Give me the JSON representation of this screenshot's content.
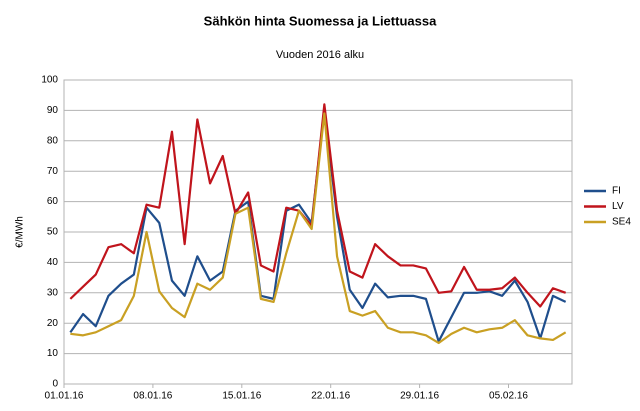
{
  "chart_data": {
    "type": "line",
    "title": "Sähkön hinta Suomessa ja Liettuassa",
    "subtitle": "Vuoden 2016 alku",
    "y_label": "€/MWh",
    "categories": [
      "01.01.16",
      null,
      null,
      null,
      null,
      null,
      null,
      "08.01.16",
      null,
      null,
      null,
      null,
      null,
      null,
      "15.01.16",
      null,
      null,
      null,
      null,
      null,
      null,
      "22.01.16",
      null,
      null,
      null,
      null,
      null,
      null,
      "29.01.16",
      null,
      null,
      null,
      null,
      null,
      null,
      "05.02.16",
      null,
      null,
      null,
      null
    ],
    "series": [
      {
        "name": "FI",
        "color": "#1f4e8c",
        "values": [
          17,
          23,
          19,
          29,
          33,
          36,
          58,
          53,
          34,
          29,
          42,
          34,
          37,
          57,
          60,
          29,
          28,
          57,
          59,
          53,
          90,
          55,
          31,
          25,
          33,
          28.5,
          29,
          29,
          28,
          14,
          22,
          30,
          30,
          30.5,
          29,
          34,
          27,
          15,
          29,
          27
        ]
      },
      {
        "name": "LV",
        "color": "#c0141c",
        "values": [
          28,
          32,
          36,
          45,
          46,
          43,
          59,
          58,
          83,
          46,
          87,
          66,
          75,
          56,
          63,
          39,
          37,
          58,
          57,
          52,
          92,
          57,
          37,
          35,
          46,
          42,
          39,
          39,
          38,
          30,
          30.5,
          38.5,
          31,
          31,
          31.5,
          35,
          30,
          25.5,
          31.5,
          30
        ]
      },
      {
        "name": "SE4",
        "color": "#c9a023",
        "values": [
          16.5,
          16,
          17,
          19,
          21,
          29,
          50,
          30.5,
          25,
          22,
          33,
          31,
          35,
          56,
          58,
          28,
          27,
          43,
          57,
          51,
          89,
          42,
          24,
          22.5,
          24,
          18.5,
          17,
          17,
          16,
          13.5,
          16.5,
          18.5,
          17,
          18,
          18.5,
          21,
          16,
          15,
          14.5,
          17
        ]
      }
    ],
    "ylim": [
      0,
      100
    ],
    "yticks": [
      0,
      10,
      20,
      30,
      40,
      50,
      60,
      70,
      80,
      90,
      100
    ],
    "grid": true,
    "legend": "right"
  }
}
